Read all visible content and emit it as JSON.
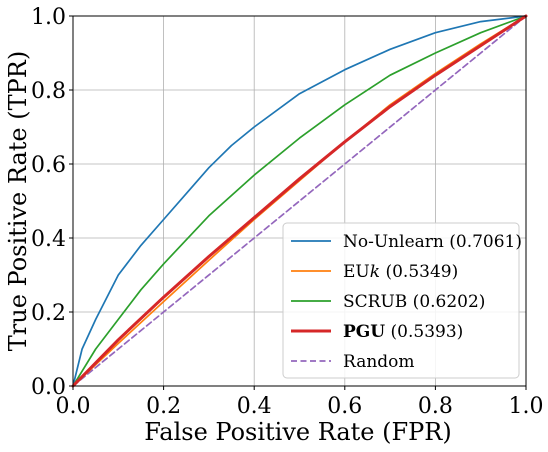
{
  "chart_data": {
    "type": "line",
    "xlabel": "False Positive Rate (FPR)",
    "ylabel": "True Positive Rate (TPR)",
    "xlim": [
      0.0,
      1.0
    ],
    "ylim": [
      0.0,
      1.0
    ],
    "xticks": [
      "0.0",
      "0.2",
      "0.4",
      "0.6",
      "0.8",
      "1.0"
    ],
    "yticks": [
      "0.0",
      "0.2",
      "0.4",
      "0.6",
      "0.8",
      "1.0"
    ],
    "grid": true,
    "legend_position": "bottom-right",
    "series": [
      {
        "name": "No-Unlearn",
        "auc": "(0.7061)",
        "color": "#1f77b4",
        "dashed": false,
        "bold": false,
        "x": [
          0.0,
          0.02,
          0.05,
          0.1,
          0.15,
          0.2,
          0.25,
          0.3,
          0.35,
          0.4,
          0.5,
          0.6,
          0.7,
          0.8,
          0.9,
          1.0
        ],
        "y": [
          0.0,
          0.1,
          0.18,
          0.3,
          0.38,
          0.45,
          0.52,
          0.59,
          0.65,
          0.7,
          0.79,
          0.855,
          0.91,
          0.955,
          0.985,
          1.0
        ]
      },
      {
        "name": "EU",
        "name_italic": "k",
        "auc": "(0.5349)",
        "color": "#ff7f0e",
        "dashed": false,
        "bold": false,
        "x": [
          0.0,
          0.1,
          0.2,
          0.3,
          0.4,
          0.5,
          0.6,
          0.7,
          0.8,
          0.9,
          1.0
        ],
        "y": [
          0.0,
          0.115,
          0.228,
          0.34,
          0.45,
          0.555,
          0.66,
          0.76,
          0.845,
          0.925,
          1.0
        ]
      },
      {
        "name": "SCRUB",
        "auc": "(0.6202)",
        "color": "#2ca02c",
        "dashed": false,
        "bold": false,
        "x": [
          0.0,
          0.05,
          0.1,
          0.15,
          0.2,
          0.3,
          0.4,
          0.5,
          0.6,
          0.7,
          0.8,
          0.9,
          1.0
        ],
        "y": [
          0.0,
          0.1,
          0.18,
          0.26,
          0.33,
          0.46,
          0.57,
          0.67,
          0.76,
          0.84,
          0.9,
          0.955,
          1.0
        ]
      },
      {
        "name": "PGU",
        "auc": "(0.5393)",
        "color": "#d62728",
        "dashed": false,
        "bold": true,
        "x": [
          0.0,
          0.1,
          0.2,
          0.3,
          0.4,
          0.5,
          0.6,
          0.7,
          0.8,
          0.9,
          1.0
        ],
        "y": [
          0.0,
          0.125,
          0.24,
          0.35,
          0.455,
          0.56,
          0.66,
          0.755,
          0.84,
          0.92,
          1.0
        ]
      },
      {
        "name": "Random",
        "auc": "",
        "color": "#9467bd",
        "dashed": true,
        "bold": false,
        "x": [
          0.0,
          1.0
        ],
        "y": [
          0.0,
          1.0
        ]
      }
    ]
  }
}
